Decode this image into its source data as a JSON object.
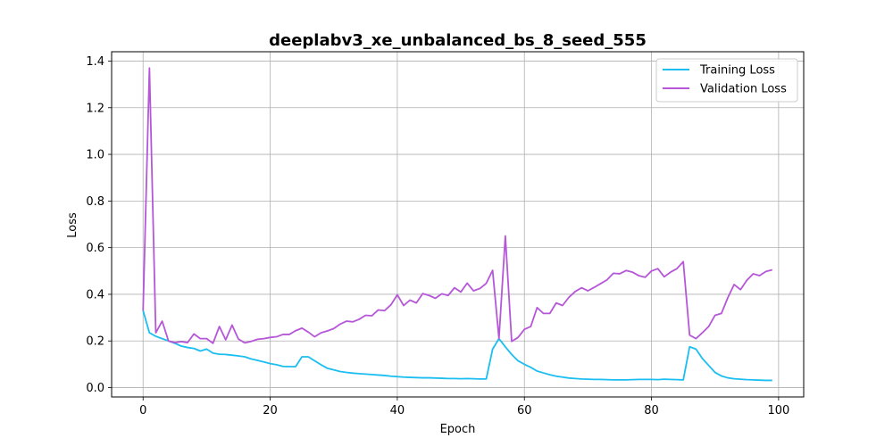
{
  "chart_data": {
    "type": "line",
    "title": "deeplabv3_xe_unbalanced_bs_8_seed_555",
    "xlabel": "Epoch",
    "ylabel": "Loss",
    "xlim": [
      -4.95,
      103.95
    ],
    "ylim": [
      -0.04,
      1.44
    ],
    "xticks": [
      0,
      20,
      40,
      60,
      80,
      100
    ],
    "yticks": [
      0.0,
      0.2,
      0.4,
      0.6,
      0.8,
      1.0,
      1.2,
      1.4
    ],
    "grid": true,
    "legend_position": "top-right",
    "x": [
      0,
      1,
      2,
      3,
      4,
      5,
      6,
      7,
      8,
      9,
      10,
      11,
      12,
      13,
      14,
      15,
      16,
      17,
      18,
      19,
      20,
      21,
      22,
      23,
      24,
      25,
      26,
      27,
      28,
      29,
      30,
      31,
      32,
      33,
      34,
      35,
      36,
      37,
      38,
      39,
      40,
      41,
      42,
      43,
      44,
      45,
      46,
      47,
      48,
      49,
      50,
      51,
      52,
      53,
      54,
      55,
      56,
      57,
      58,
      59,
      60,
      61,
      62,
      63,
      64,
      65,
      66,
      67,
      68,
      69,
      70,
      71,
      72,
      73,
      74,
      75,
      76,
      77,
      78,
      79,
      80,
      81,
      82,
      83,
      84,
      85,
      86,
      87,
      88,
      89,
      90,
      91,
      92,
      93,
      94,
      95,
      96,
      97,
      98,
      99
    ],
    "series": [
      {
        "name": "Training Loss",
        "color": "#1bbef0",
        "values": [
          0.33,
          0.235,
          0.22,
          0.21,
          0.2,
          0.19,
          0.178,
          0.172,
          0.168,
          0.157,
          0.165,
          0.148,
          0.143,
          0.142,
          0.139,
          0.136,
          0.132,
          0.123,
          0.117,
          0.11,
          0.103,
          0.098,
          0.091,
          0.09,
          0.09,
          0.132,
          0.132,
          0.115,
          0.098,
          0.083,
          0.076,
          0.069,
          0.065,
          0.062,
          0.06,
          0.058,
          0.056,
          0.054,
          0.052,
          0.049,
          0.047,
          0.045,
          0.044,
          0.043,
          0.042,
          0.042,
          0.041,
          0.04,
          0.039,
          0.039,
          0.038,
          0.039,
          0.038,
          0.037,
          0.037,
          0.165,
          0.21,
          0.175,
          0.142,
          0.115,
          0.1,
          0.087,
          0.071,
          0.063,
          0.055,
          0.049,
          0.045,
          0.041,
          0.039,
          0.037,
          0.036,
          0.035,
          0.035,
          0.034,
          0.033,
          0.033,
          0.033,
          0.034,
          0.035,
          0.035,
          0.035,
          0.034,
          0.036,
          0.035,
          0.034,
          0.033,
          0.175,
          0.165,
          0.125,
          0.095,
          0.065,
          0.05,
          0.042,
          0.038,
          0.036,
          0.034,
          0.033,
          0.032,
          0.031,
          0.031
        ]
      },
      {
        "name": "Validation Loss",
        "color": "#b557d8",
        "values": [
          0.33,
          1.37,
          0.235,
          0.285,
          0.2,
          0.193,
          0.197,
          0.193,
          0.23,
          0.21,
          0.21,
          0.19,
          0.262,
          0.205,
          0.268,
          0.208,
          0.192,
          0.198,
          0.207,
          0.21,
          0.215,
          0.218,
          0.228,
          0.228,
          0.244,
          0.255,
          0.238,
          0.218,
          0.235,
          0.243,
          0.253,
          0.272,
          0.285,
          0.282,
          0.293,
          0.31,
          0.308,
          0.333,
          0.33,
          0.355,
          0.398,
          0.352,
          0.375,
          0.363,
          0.403,
          0.395,
          0.383,
          0.402,
          0.395,
          0.428,
          0.41,
          0.448,
          0.415,
          0.425,
          0.447,
          0.503,
          0.21,
          0.65,
          0.198,
          0.215,
          0.25,
          0.262,
          0.343,
          0.318,
          0.318,
          0.363,
          0.352,
          0.387,
          0.412,
          0.428,
          0.415,
          0.43,
          0.446,
          0.462,
          0.49,
          0.488,
          0.502,
          0.495,
          0.48,
          0.473,
          0.5,
          0.51,
          0.475,
          0.495,
          0.51,
          0.54,
          0.225,
          0.21,
          0.235,
          0.262,
          0.31,
          0.318,
          0.385,
          0.442,
          0.42,
          0.46,
          0.488,
          0.48,
          0.498,
          0.505
        ]
      }
    ]
  }
}
